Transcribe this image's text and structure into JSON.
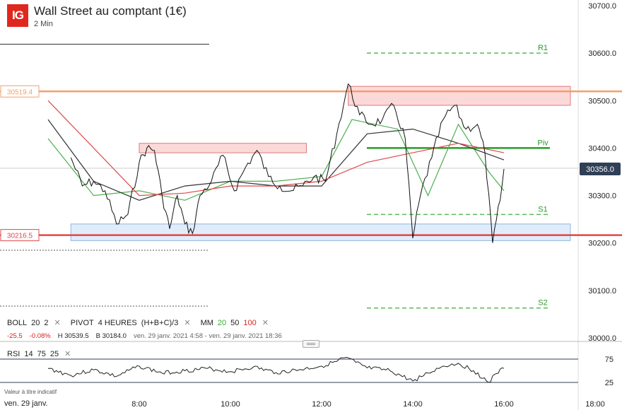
{
  "header": {
    "logo": "IG",
    "title": "Wall Street au comptant (1€)",
    "subtitle": "2 Min"
  },
  "indicators": {
    "boll": {
      "name": "BOLL",
      "p1": "20",
      "p2": "2"
    },
    "pivot": {
      "name": "PIVOT",
      "p1": "4 HEURES",
      "p2": "(H+B+C)/3"
    },
    "mm": {
      "name": "MM",
      "p1": "20",
      "p2": "50",
      "p3": "100"
    },
    "close_icon": "close-icon"
  },
  "stats": {
    "change": "-25.5",
    "change_pct": "-0.08%",
    "high": "H 30539.5",
    "low": "B 30184.0",
    "range": "ven. 29 janv. 2021 4:58 - ven. 29 janv. 2021 18:36"
  },
  "rsi": {
    "name": "RSI",
    "p1": "14",
    "p2": "75",
    "p3": "25",
    "level_high": "75",
    "level_low": "25"
  },
  "footer": {
    "note": "Valeur à titre indicatif",
    "date": "ven. 29 janv."
  },
  "colors": {
    "resistance_line": "#f0a070",
    "support_line": "#e04848",
    "pivot_line": "#2a9a2a",
    "sr_levels": "#5cb85c",
    "mm20": "#4caf50",
    "mm50": "#333333",
    "mm100": "#e04848",
    "rsi_line": "#222222"
  },
  "chart_data": [
    {
      "type": "line",
      "title": "Wall Street au comptant (1€)",
      "timeframe": "2 Min",
      "x_ticks": [
        "8:00",
        "10:00",
        "12:00",
        "14:00",
        "16:00",
        "18:00"
      ],
      "y_ticks": [
        "30000.0",
        "30100.0",
        "30200.0",
        "30300.0",
        "30400.0",
        "30500.0",
        "30600.0",
        "30700.0"
      ],
      "ylim": [
        30000,
        30700
      ],
      "current_price": "30356.0",
      "price_points": [
        [
          "6:30",
          30380
        ],
        [
          "6:45",
          30320
        ],
        [
          "7:00",
          30330
        ],
        [
          "7:15",
          30310
        ],
        [
          "7:30",
          30240
        ],
        [
          "7:45",
          30260
        ],
        [
          "8:00",
          30370
        ],
        [
          "8:10",
          30400
        ],
        [
          "8:20",
          30395
        ],
        [
          "8:30",
          30300
        ],
        [
          "8:40",
          30230
        ],
        [
          "8:50",
          30300
        ],
        [
          "9:00",
          30240
        ],
        [
          "9:10",
          30220
        ],
        [
          "9:20",
          30300
        ],
        [
          "9:35",
          30330
        ],
        [
          "9:50",
          30385
        ],
        [
          "10:05",
          30310
        ],
        [
          "10:20",
          30360
        ],
        [
          "10:35",
          30395
        ],
        [
          "10:50",
          30340
        ],
        [
          "11:05",
          30320
        ],
        [
          "11:20",
          30310
        ],
        [
          "11:35",
          30320
        ],
        [
          "11:50",
          30340
        ],
        [
          "12:05",
          30330
        ],
        [
          "12:20",
          30430
        ],
        [
          "12:35",
          30535
        ],
        [
          "12:50",
          30470
        ],
        [
          "13:05",
          30450
        ],
        [
          "13:20",
          30460
        ],
        [
          "13:35",
          30490
        ],
        [
          "13:50",
          30420
        ],
        [
          "14:00",
          30210
        ],
        [
          "14:10",
          30300
        ],
        [
          "14:25",
          30380
        ],
        [
          "14:40",
          30460
        ],
        [
          "14:55",
          30490
        ],
        [
          "15:10",
          30440
        ],
        [
          "15:25",
          30450
        ],
        [
          "15:35",
          30390
        ],
        [
          "15:45",
          30200
        ],
        [
          "15:55",
          30290
        ],
        [
          "16:00",
          30356
        ]
      ],
      "levels": [
        {
          "name": "R1",
          "value": 30600,
          "style": "dashed"
        },
        {
          "name": "Piv",
          "value": 30400,
          "style": "solid"
        },
        {
          "name": "S1",
          "value": 30260,
          "style": "dashed"
        },
        {
          "name": "S2",
          "value": 30063,
          "style": "dashed"
        }
      ],
      "horizontal_lines": [
        {
          "label": "30519.4",
          "value": 30519.4
        },
        {
          "label": "30216.5",
          "value": 30216.5
        }
      ],
      "zones": [
        {
          "from": "12:35",
          "to": "17:30",
          "low": 30490,
          "high": 30530,
          "kind": "resistance"
        },
        {
          "from": "8:00",
          "to": "11:40",
          "low": 30390,
          "high": 30410,
          "kind": "resistance"
        },
        {
          "from": "6:30",
          "to": "17:30",
          "low": 30205,
          "high": 30240,
          "kind": "support"
        }
      ],
      "moving_averages": [
        {
          "name": "20",
          "points": [
            [
              "6:00",
              30420
            ],
            [
              "7:00",
              30300
            ],
            [
              "8:00",
              30310
            ],
            [
              "9:00",
              30290
            ],
            [
              "10:00",
              30330
            ],
            [
              "11:00",
              30330
            ],
            [
              "12:00",
              30340
            ],
            [
              "12:40",
              30460
            ],
            [
              "13:40",
              30440
            ],
            [
              "14:20",
              30300
            ],
            [
              "15:00",
              30450
            ],
            [
              "15:40",
              30350
            ],
            [
              "16:00",
              30310
            ]
          ]
        },
        {
          "name": "50",
          "points": [
            [
              "6:00",
              30460
            ],
            [
              "7:00",
              30330
            ],
            [
              "8:00",
              30290
            ],
            [
              "9:00",
              30320
            ],
            [
              "10:00",
              30330
            ],
            [
              "11:00",
              30320
            ],
            [
              "12:00",
              30320
            ],
            [
              "13:00",
              30430
            ],
            [
              "14:00",
              30440
            ],
            [
              "15:00",
              30410
            ],
            [
              "16:00",
              30375
            ]
          ]
        },
        {
          "name": "100",
          "points": [
            [
              "6:00",
              30500
            ],
            [
              "7:00",
              30400
            ],
            [
              "8:00",
              30300
            ],
            [
              "9:00",
              30305
            ],
            [
              "10:00",
              30320
            ],
            [
              "11:00",
              30320
            ],
            [
              "12:00",
              30330
            ],
            [
              "13:00",
              30370
            ],
            [
              "14:00",
              30390
            ],
            [
              "15:00",
              30410
            ],
            [
              "16:00",
              30390
            ]
          ]
        }
      ]
    },
    {
      "type": "line",
      "title": "RSI 14 75 25",
      "ylim": [
        0,
        100
      ],
      "levels": [
        75,
        25
      ],
      "points": [
        [
          "6:00",
          55
        ],
        [
          "6:30",
          40
        ],
        [
          "7:00",
          52
        ],
        [
          "7:30",
          38
        ],
        [
          "8:00",
          60
        ],
        [
          "8:30",
          45
        ],
        [
          "9:00",
          50
        ],
        [
          "9:30",
          55
        ],
        [
          "10:00",
          48
        ],
        [
          "10:30",
          58
        ],
        [
          "11:00",
          46
        ],
        [
          "11:30",
          52
        ],
        [
          "12:00",
          60
        ],
        [
          "12:20",
          70
        ],
        [
          "12:30",
          78
        ],
        [
          "12:45",
          68
        ],
        [
          "13:00",
          56
        ],
        [
          "13:30",
          50
        ],
        [
          "14:00",
          28
        ],
        [
          "14:20",
          45
        ],
        [
          "14:40",
          60
        ],
        [
          "15:00",
          66
        ],
        [
          "15:20",
          50
        ],
        [
          "15:40",
          25
        ],
        [
          "15:50",
          44
        ],
        [
          "16:00",
          55
        ]
      ]
    }
  ]
}
